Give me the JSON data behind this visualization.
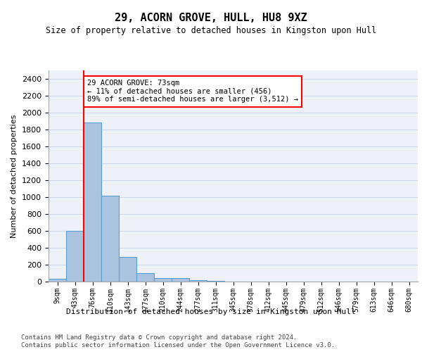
{
  "title": "29, ACORN GROVE, HULL, HU8 9XZ",
  "subtitle": "Size of property relative to detached houses in Kingston upon Hull",
  "xlabel": "Distribution of detached houses by size in Kingston upon Hull",
  "ylabel": "Number of detached properties",
  "bin_labels": [
    "9sqm",
    "43sqm",
    "76sqm",
    "110sqm",
    "143sqm",
    "177sqm",
    "210sqm",
    "244sqm",
    "277sqm",
    "311sqm",
    "345sqm",
    "378sqm",
    "412sqm",
    "445sqm",
    "479sqm",
    "512sqm",
    "546sqm",
    "579sqm",
    "613sqm",
    "646sqm",
    "680sqm"
  ],
  "bin_values": [
    30,
    600,
    1880,
    1020,
    290,
    100,
    45,
    40,
    20,
    5,
    2,
    1,
    1,
    0,
    0,
    0,
    0,
    0,
    0,
    0,
    0
  ],
  "bar_color": "#aac4e0",
  "bar_edge_color": "#5a9fd4",
  "property_line_bin": 2,
  "annotation_text": "29 ACORN GROVE: 73sqm\n← 11% of detached houses are smaller (456)\n89% of semi-detached houses are larger (3,512) →",
  "annotation_box_color": "white",
  "annotation_box_edge": "red",
  "ylim": [
    0,
    2500
  ],
  "yticks": [
    0,
    200,
    400,
    600,
    800,
    1000,
    1200,
    1400,
    1600,
    1800,
    2000,
    2200,
    2400
  ],
  "grid_color": "#d0d8e8",
  "background_color": "#eef2f8",
  "footer_line1": "Contains HM Land Registry data © Crown copyright and database right 2024.",
  "footer_line2": "Contains public sector information licensed under the Open Government Licence v3.0."
}
